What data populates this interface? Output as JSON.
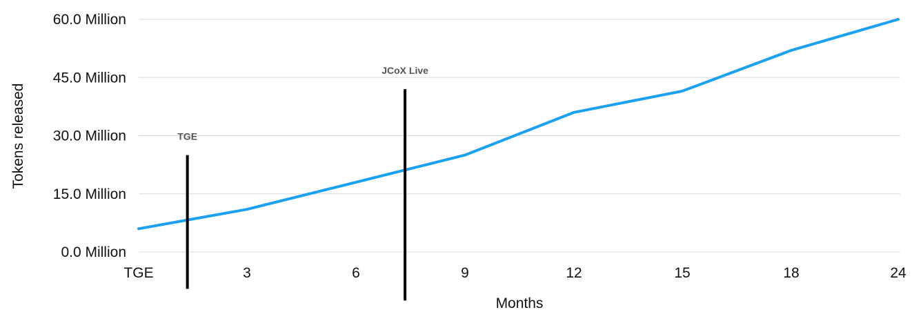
{
  "chart_data": {
    "type": "line",
    "title": "",
    "xlabel": "Months",
    "ylabel": "Tokens released",
    "categories": [
      "TGE",
      "3",
      "6",
      "9",
      "12",
      "15",
      "18",
      "24"
    ],
    "ylim": [
      0,
      60
    ],
    "y_ticks": [
      {
        "value": 0,
        "label": "0.0 Million"
      },
      {
        "value": 15,
        "label": "15.0 Million"
      },
      {
        "value": 30,
        "label": "30.0 Million"
      },
      {
        "value": 45,
        "label": "45.0 Million"
      },
      {
        "value": 60,
        "label": "60.0 Million"
      }
    ],
    "grid": true,
    "series": [
      {
        "color": "#1aa1f1",
        "values": [
          6,
          11,
          18,
          25,
          36,
          41.5,
          52,
          60
        ]
      }
    ],
    "markers": [
      {
        "label": "TGE",
        "x_index": 0.45,
        "y_top": 25,
        "y_bottom": -9.5
      },
      {
        "label": "JCoX Live",
        "x_index": 2.45,
        "y_top": 42,
        "y_bottom": -12.5
      }
    ]
  }
}
